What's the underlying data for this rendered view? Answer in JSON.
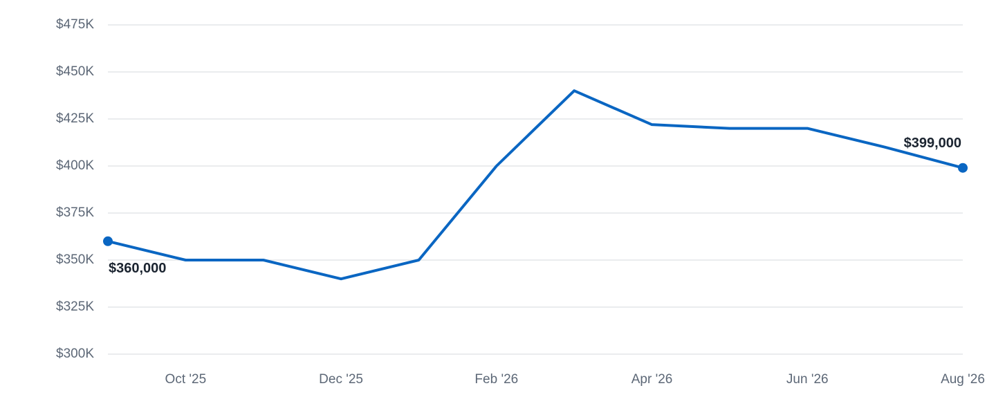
{
  "chart_data": {
    "type": "line",
    "categories": [
      null,
      "Oct '25",
      null,
      "Dec '25",
      null,
      "Feb '26",
      null,
      "Apr '26",
      null,
      "Jun '26",
      null,
      "Aug '26"
    ],
    "series": [
      {
        "color": "#0a66c2",
        "values": [
          360000,
          350000,
          350000,
          340000,
          350000,
          400000,
          440000,
          422000,
          420000,
          420000,
          410000,
          399000
        ],
        "value_labels": [
          "$360,000",
          null,
          null,
          null,
          null,
          null,
          null,
          null,
          null,
          null,
          null,
          "$399,000"
        ]
      }
    ],
    "ylim": [
      300000,
      475000
    ],
    "yticks": [
      {
        "value": 300000,
        "label": "$300K"
      },
      {
        "value": 325000,
        "label": "$325K"
      },
      {
        "value": 350000,
        "label": "$350K"
      },
      {
        "value": 375000,
        "label": "$375K"
      },
      {
        "value": 400000,
        "label": "$400K"
      },
      {
        "value": 425000,
        "label": "$425K"
      },
      {
        "value": 450000,
        "label": "$450K"
      },
      {
        "value": 475000,
        "label": "$475K"
      }
    ],
    "grid": true
  }
}
